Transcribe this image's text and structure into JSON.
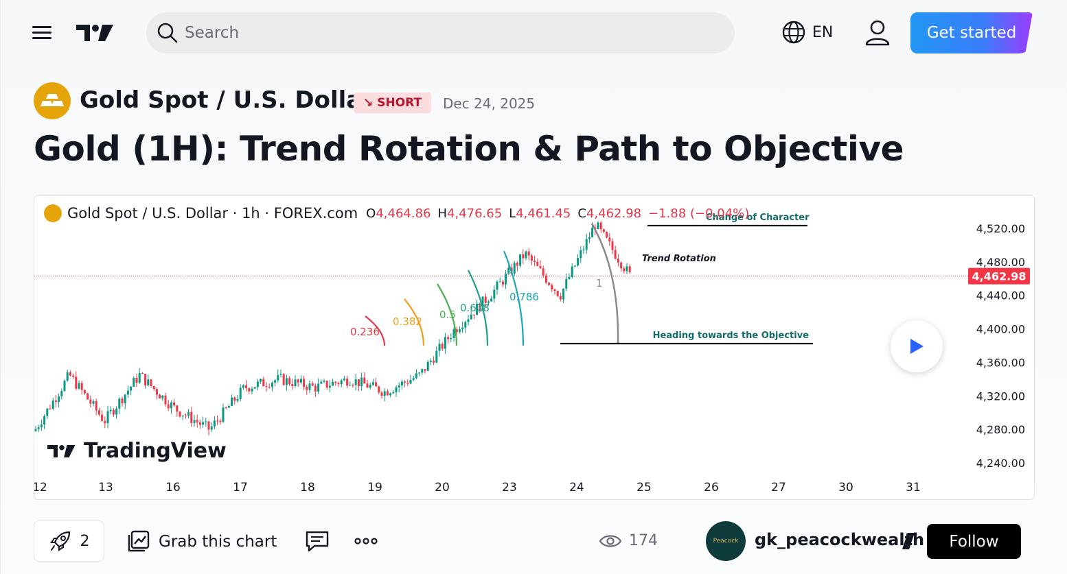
{
  "header": {
    "search_placeholder": "Search",
    "language": "EN",
    "get_started_label": "Get started"
  },
  "idea": {
    "symbol_name": "Gold Spot / U.S. Dollar",
    "direction": "SHORT",
    "date": "Dec 24, 2025",
    "title": "Gold (1H): Trend Rotation & Path to Objective"
  },
  "chart": {
    "legend_symbol": "Gold Spot / U.S. Dollar · 1h · FOREX.com",
    "open_label": "O",
    "open": "4,464.86",
    "high_label": "H",
    "high": "4,476.65",
    "low_label": "L",
    "low": "4,461.45",
    "close_label": "C",
    "close": "4,462.98",
    "change": "−1.88 (−0.04%)",
    "watermark": "TradingView",
    "annotations": {
      "choch": "Change of Character",
      "trend_rotation": "Trend Rotation",
      "objective": "Heading towards the Objective",
      "fib_1": "1",
      "fib_0786": "0.786",
      "fib_0618": "0.618",
      "fib_05": "0.5",
      "fib_0382": "0.382",
      "fib_0236": "0.236"
    },
    "last_price_label": "4,462.98"
  },
  "chart_data": {
    "type": "candlestick",
    "title": "Gold Spot / U.S. Dollar · 1h · FOREX.com",
    "x_ticks": [
      "12",
      "13",
      "16",
      "17",
      "18",
      "19",
      "20",
      "23",
      "24",
      "25",
      "26",
      "27",
      "30",
      "31"
    ],
    "y_ticks": [
      "4,520.00",
      "4,480.00",
      "4,440.00",
      "4,400.00",
      "4,360.00",
      "4,320.00",
      "4,280.00",
      "4,240.00"
    ],
    "ylim": [
      4220,
      4540
    ],
    "last_price": 4462.98,
    "approx_close_path": [
      {
        "day": "12",
        "value": 4278
      },
      {
        "day": "13",
        "value": 4345
      },
      {
        "day": "13",
        "value": 4290
      },
      {
        "day": "16",
        "value": 4345
      },
      {
        "day": "16",
        "value": 4305
      },
      {
        "day": "17",
        "value": 4280
      },
      {
        "day": "17",
        "value": 4330
      },
      {
        "day": "18",
        "value": 4340
      },
      {
        "day": "18",
        "value": 4330
      },
      {
        "day": "19",
        "value": 4340
      },
      {
        "day": "19",
        "value": 4325
      },
      {
        "day": "20",
        "value": 4345
      },
      {
        "day": "20",
        "value": 4400
      },
      {
        "day": "23",
        "value": 4440
      },
      {
        "day": "23",
        "value": 4490
      },
      {
        "day": "24",
        "value": 4440
      },
      {
        "day": "24",
        "value": 4525
      },
      {
        "day": "24",
        "value": 4462.98
      }
    ],
    "colors": {
      "up": "#089981",
      "down": "#f23645"
    }
  },
  "footer": {
    "boost_count": "2",
    "grab_label": "Grab this chart",
    "views": "174",
    "author": "gk_peacockwealth",
    "avatar_text": "Peacock",
    "follow_label": "Follow"
  }
}
